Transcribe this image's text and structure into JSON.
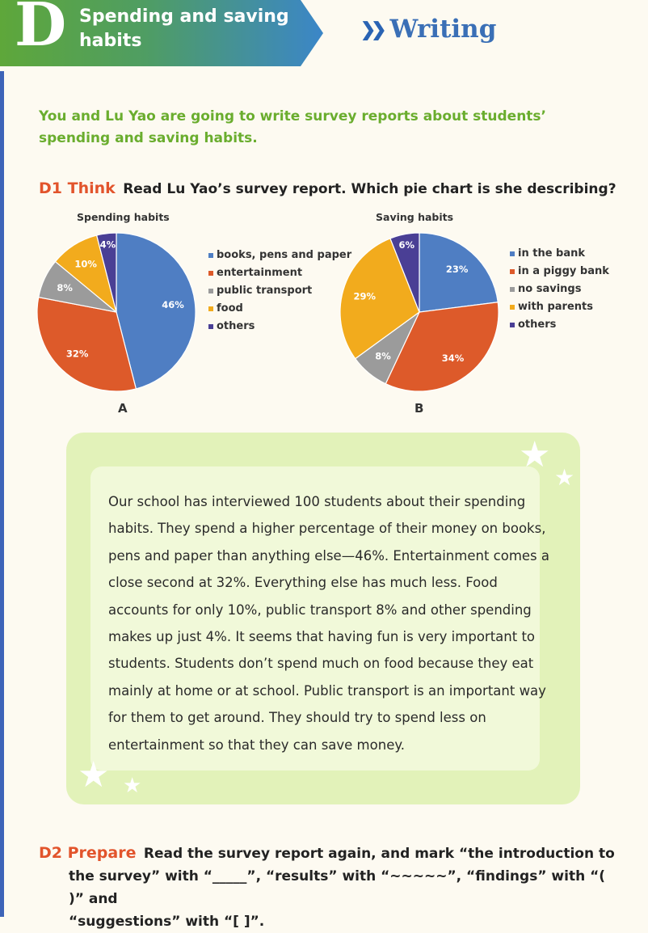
{
  "header": {
    "letter": "D",
    "title": "Spending and saving habits",
    "section": "Writing",
    "colors": {
      "green": "#5ea73a",
      "blue": "#3b86c8"
    }
  },
  "intro": "You and Lu Yao are going to write survey reports about students’ spending and saving habits.",
  "d1": {
    "label": "D1 Think",
    "text": "Read Lu Yao’s survey report. Which pie chart is she describing?"
  },
  "chart_data": [
    {
      "type": "pie",
      "title": "Spending habits",
      "caption": "A",
      "categories": [
        "books, pens and paper",
        "entertainment",
        "public transport",
        "food",
        "others"
      ],
      "values": [
        46,
        32,
        8,
        10,
        4
      ],
      "labels": [
        "46%",
        "32%",
        "8%",
        "10%",
        "4%"
      ],
      "colors": [
        "#4f7ec3",
        "#dd5a2a",
        "#9b9b9b",
        "#f2ab1d",
        "#4a3f95"
      ],
      "legend_position": "right"
    },
    {
      "type": "pie",
      "title": "Saving habits",
      "caption": "B",
      "categories": [
        "in the bank",
        "in a piggy bank",
        "no savings",
        "with parents",
        "others"
      ],
      "values": [
        23,
        34,
        8,
        29,
        6
      ],
      "labels": [
        "23%",
        "34%",
        "8%",
        "29%",
        "6%"
      ],
      "colors": [
        "#4f7ec3",
        "#dd5a2a",
        "#9b9b9b",
        "#f2ab1d",
        "#4a3f95"
      ],
      "legend_position": "right"
    }
  ],
  "report": "Our school has interviewed 100 students about their spending habits. They spend a higher percentage of their money on books, pens and paper than anything else—46%. Entertainment comes a close second at 32%. Everything else has much less. Food accounts for only 10%, public transport 8% and other spending makes up just 4%. It seems that having fun is very important to students. Students don’t spend much on food because they eat mainly at home or at school. Public transport is an important way for them to get around. They should try to spend less on entertainment so that they can save money.",
  "d2": {
    "label": "D2 Prepare",
    "line1": "Read the survey report again, and mark “the introduction to",
    "line2": "the survey” with “_____”, “results” with “~~~~~”, “findings” with “(   )” and",
    "line3": "“suggestions” with “[   ]”."
  }
}
